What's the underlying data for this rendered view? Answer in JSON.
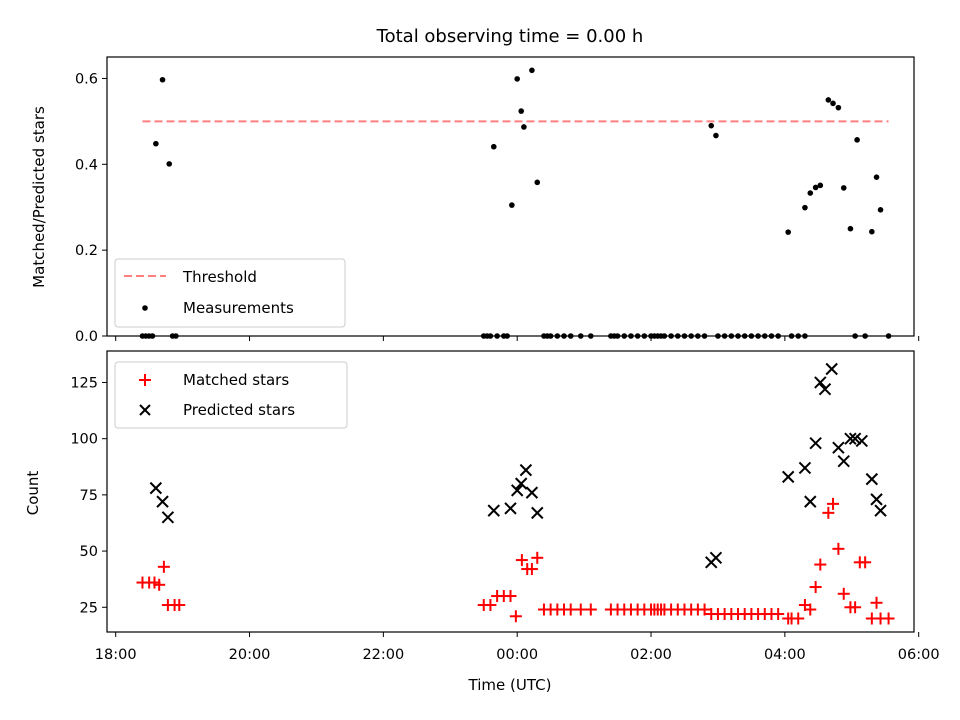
{
  "chart_data": [
    {
      "type": "scatter",
      "title": "Total observing time = 0.00 h",
      "ylabel": "Matched/Predicted stars",
      "xlim_hours": [
        17.87,
        29.93
      ],
      "ylim": [
        0,
        0.65
      ],
      "yticks": [
        "0.0",
        "0.2",
        "0.4",
        "0.6"
      ],
      "threshold": {
        "name": "Threshold",
        "value": 0.5,
        "x_range": [
          18.4,
          29.55
        ],
        "color": "#ff7f7f"
      },
      "series": [
        {
          "name": "Measurements",
          "color": "#000000",
          "x": [
            18.6,
            18.7,
            18.8,
            23.65,
            23.92,
            24.0,
            24.06,
            24.1,
            24.22,
            24.3,
            26.9,
            26.97,
            28.05,
            28.3,
            28.38,
            28.46,
            28.53,
            28.65,
            28.72,
            28.8,
            28.88,
            28.98,
            29.08,
            29.3,
            29.37,
            29.43,
            18.4,
            18.45,
            18.5,
            18.55,
            18.85,
            18.9,
            23.5,
            23.55,
            23.6,
            23.7,
            23.8,
            23.85,
            24.4,
            24.45,
            24.5,
            24.6,
            24.7,
            24.8,
            24.95,
            25.1,
            25.4,
            25.45,
            25.5,
            25.6,
            25.7,
            25.8,
            25.9,
            26.0,
            26.05,
            26.1,
            26.15,
            26.2,
            26.3,
            26.4,
            26.5,
            26.6,
            26.7,
            26.8,
            27.0,
            27.1,
            27.2,
            27.3,
            27.4,
            27.5,
            27.6,
            27.7,
            27.8,
            27.9,
            28.1,
            28.2,
            28.3,
            29.05,
            29.2,
            29.55
          ],
          "y": [
            0.448,
            0.597,
            0.401,
            0.441,
            0.305,
            0.599,
            0.524,
            0.487,
            0.619,
            0.358,
            0.49,
            0.467,
            0.242,
            0.299,
            0.333,
            0.346,
            0.351,
            0.55,
            0.542,
            0.532,
            0.345,
            0.25,
            0.457,
            0.243,
            0.37,
            0.294,
            0,
            0,
            0,
            0,
            0,
            0,
            0,
            0,
            0,
            0,
            0,
            0,
            0,
            0,
            0,
            0,
            0,
            0,
            0,
            0,
            0,
            0,
            0,
            0,
            0,
            0,
            0,
            0,
            0,
            0,
            0,
            0,
            0,
            0,
            0,
            0,
            0,
            0,
            0,
            0,
            0,
            0,
            0,
            0,
            0,
            0,
            0,
            0,
            0,
            0,
            0,
            0,
            0,
            0
          ]
        }
      ],
      "legend": {
        "position": "lower left",
        "entries": [
          "Threshold",
          "Measurements"
        ]
      }
    },
    {
      "type": "scatter",
      "xlabel": "Time (UTC)",
      "ylabel": "Count",
      "xlim_hours": [
        17.87,
        29.93
      ],
      "ylim": [
        14,
        139
      ],
      "xticks": [
        "18:00",
        "20:00",
        "22:00",
        "00:00",
        "02:00",
        "04:00",
        "06:00"
      ],
      "xtick_hours": [
        18,
        20,
        22,
        24,
        26,
        28,
        30
      ],
      "yticks": [
        "25",
        "50",
        "75",
        "100",
        "125"
      ],
      "ytick_values": [
        25,
        50,
        75,
        100,
        125
      ],
      "series": [
        {
          "name": "Matched stars",
          "marker": "plus",
          "color": "#ff0000",
          "x": [
            18.4,
            18.5,
            18.58,
            18.65,
            18.72,
            18.78,
            18.88,
            18.95,
            23.5,
            23.6,
            23.7,
            23.8,
            23.9,
            23.98,
            24.07,
            24.15,
            24.22,
            24.3,
            24.4,
            24.5,
            24.6,
            24.7,
            24.8,
            24.95,
            25.1,
            25.4,
            25.5,
            25.6,
            25.7,
            25.8,
            25.9,
            26.0,
            26.05,
            26.1,
            26.15,
            26.2,
            26.3,
            26.4,
            26.5,
            26.6,
            26.7,
            26.8,
            26.9,
            27.0,
            27.1,
            27.2,
            27.3,
            27.4,
            27.5,
            27.6,
            27.7,
            27.8,
            27.9,
            28.05,
            28.1,
            28.2,
            28.3,
            28.38,
            28.46,
            28.53,
            28.65,
            28.72,
            28.8,
            28.88,
            28.98,
            29.05,
            29.12,
            29.2,
            29.3,
            29.37,
            29.43,
            29.55
          ],
          "y": [
            36,
            36,
            36,
            35,
            43,
            26,
            26,
            26,
            26,
            26,
            30,
            30,
            30,
            21,
            46,
            42,
            42,
            47,
            24,
            24,
            24,
            24,
            24,
            24,
            24,
            24,
            24,
            24,
            24,
            24,
            24,
            24,
            24,
            24,
            24,
            24,
            24,
            24,
            24,
            24,
            24,
            24,
            22,
            22,
            22,
            22,
            22,
            22,
            22,
            22,
            22,
            22,
            22,
            20,
            20,
            20,
            26,
            24,
            34,
            44,
            67,
            71,
            51,
            31,
            25,
            25,
            45,
            45,
            20,
            27,
            20,
            20
          ]
        },
        {
          "name": "Predicted stars",
          "marker": "x",
          "color": "#000000",
          "x": [
            18.6,
            18.7,
            18.78,
            23.65,
            23.9,
            24.0,
            24.06,
            24.13,
            24.22,
            24.3,
            26.9,
            26.97,
            28.05,
            28.3,
            28.38,
            28.46,
            28.53,
            28.6,
            28.7,
            28.8,
            28.88,
            28.98,
            29.05,
            29.15,
            29.3,
            29.37,
            29.43
          ],
          "y": [
            78,
            72,
            65,
            68,
            69,
            77,
            80,
            86,
            76,
            67,
            45,
            47,
            83,
            87,
            72,
            98,
            125,
            122,
            131,
            96,
            90,
            100,
            100,
            99,
            82,
            73,
            68
          ]
        }
      ],
      "legend": {
        "position": "upper left",
        "entries": [
          "Matched stars",
          "Predicted stars"
        ]
      }
    }
  ]
}
